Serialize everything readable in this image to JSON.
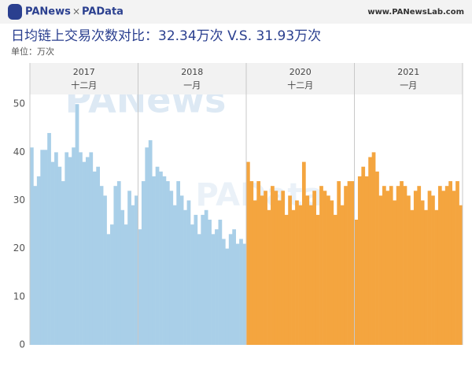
{
  "header": {
    "brand1": "PANews",
    "cross": "×",
    "brand2": "PAData",
    "site": "www.PANewsLab.com"
  },
  "chart_data": {
    "type": "bar",
    "title": "日均链上交易次数对比：32.34万次 V.S. 31.93万次",
    "subtitle": "单位：万次",
    "watermarks": [
      "PANews",
      "PAData"
    ],
    "ylim": [
      0,
      52
    ],
    "yticks": [
      0,
      10,
      20,
      30,
      40,
      50
    ],
    "panels": [
      {
        "year": "2017",
        "month": "十二月",
        "color": "#a9cfe8",
        "values": [
          41,
          33,
          35,
          40.5,
          40.5,
          44,
          38,
          40,
          37,
          34,
          40,
          39,
          41,
          50,
          40,
          38,
          39,
          40,
          36,
          37,
          33,
          31,
          23,
          25,
          33,
          34,
          28,
          25,
          32,
          29,
          31
        ]
      },
      {
        "year": "2018",
        "month": "一月",
        "color": "#a9cfe8",
        "values": [
          24,
          34,
          41,
          42.5,
          35,
          37,
          36,
          35,
          34,
          32,
          29,
          34,
          31,
          28,
          30,
          25,
          27,
          23,
          27,
          28,
          26,
          23,
          24,
          26,
          22,
          20,
          23,
          24,
          21,
          22,
          21
        ]
      },
      {
        "year": "2020",
        "month": "十二月",
        "color": "#f4a53f",
        "values": [
          38,
          34,
          30,
          34,
          31,
          32,
          28,
          33,
          32,
          30,
          32,
          27,
          31,
          28,
          30,
          29,
          38,
          31,
          29,
          32,
          27,
          33,
          32,
          31,
          30,
          27,
          34,
          29,
          33,
          34,
          34
        ]
      },
      {
        "year": "2021",
        "month": "一月",
        "color": "#f4a53f",
        "values": [
          26,
          35,
          37,
          35,
          39,
          40,
          36,
          31,
          33,
          32,
          33,
          30,
          33,
          34,
          33,
          31,
          28,
          32,
          33,
          30,
          28,
          32,
          31,
          28,
          33,
          32,
          33,
          34,
          32,
          34,
          29
        ]
      }
    ]
  }
}
